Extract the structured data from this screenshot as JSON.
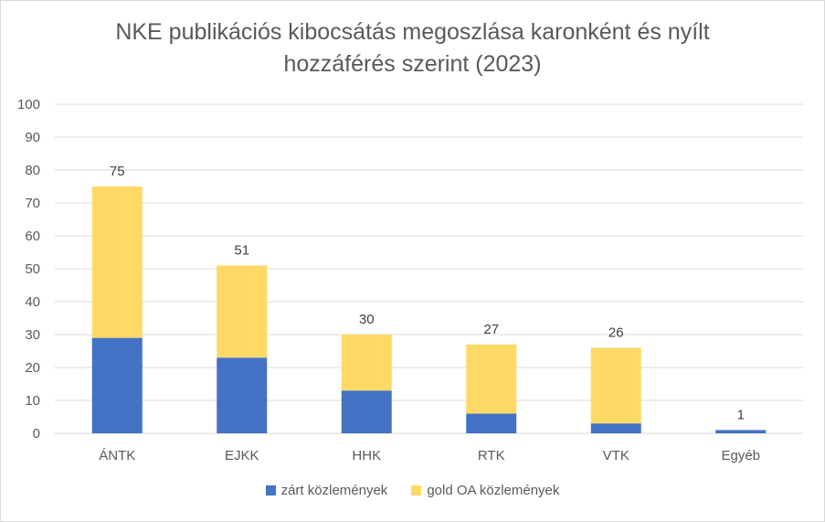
{
  "chart_data": {
    "type": "bar",
    "stacked": true,
    "title": "NKE publikációs kibocsátás megoszlása karonként és nyílt hozzáférés szerint (2023)",
    "title_lines": [
      "NKE publikációs kibocsátás megoszlása karonként és nyílt",
      "hozzáférés szerint (2023)"
    ],
    "categories": [
      "ÁNTK",
      "EJKK",
      "HHK",
      "RTK",
      "VTK",
      "Egyéb"
    ],
    "series": [
      {
        "name": "zárt közlemények",
        "color": "#4472c4",
        "values": [
          29,
          23,
          13,
          6,
          3,
          1
        ]
      },
      {
        "name": "gold OA közlemények",
        "color": "#ffd966",
        "values": [
          46,
          28,
          17,
          21,
          23,
          0
        ]
      }
    ],
    "totals": [
      75,
      51,
      30,
      27,
      26,
      1
    ],
    "ylim": [
      0,
      100
    ],
    "yticks": [
      0,
      10,
      20,
      30,
      40,
      50,
      60,
      70,
      80,
      90,
      100
    ],
    "grid": true,
    "legend_position": "bottom"
  }
}
